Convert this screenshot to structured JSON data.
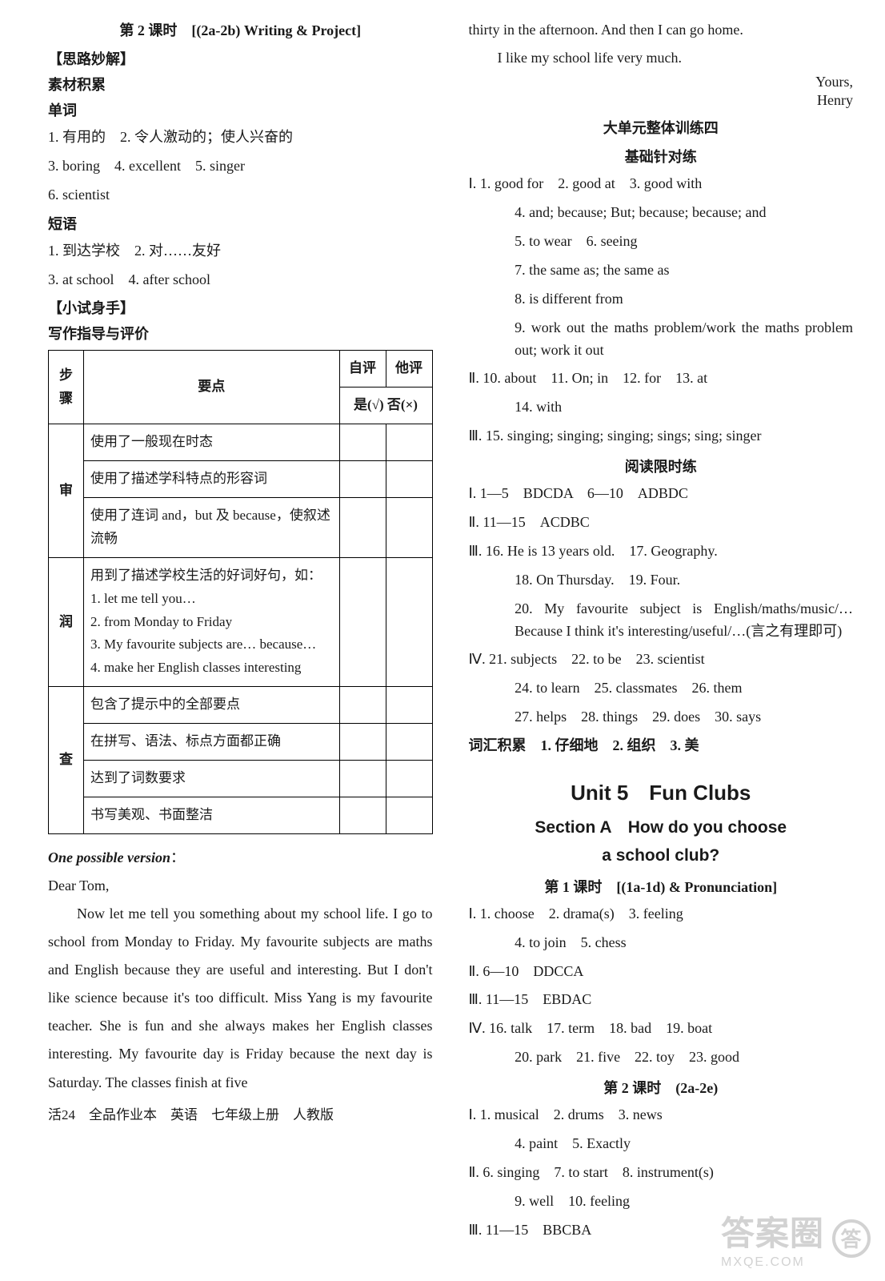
{
  "left": {
    "lesson_title_zh": "第 2 课时　[",
    "lesson_title_en": "(2a-2b) Writing & Project",
    "lesson_title_close": "]",
    "h_silu": "【思路妙解】",
    "h_sucai": "素材积累",
    "h_danci": "单词",
    "danci_l1": "1. 有用的　2. 令人激动的；使人兴奋的",
    "danci_l2": "3. boring　4. excellent　5. singer",
    "danci_l3": "6. scientist",
    "h_duanyu": "短语",
    "duanyu_l1": "1. 到达学校　2. 对……友好",
    "duanyu_l2": "3. at school　4. after school",
    "h_xiaoshi": "【小试身手】",
    "h_xiezuo": "写作指导与评价",
    "table": {
      "th_step": "步骤",
      "th_point": "要点",
      "th_self": "自评",
      "th_peer": "他评",
      "th_mark": "是(√) 否(×)",
      "r1_step": "审",
      "r1_c1": "使用了一般现在时态",
      "r1_c2": "使用了描述学科特点的形容词",
      "r1_c3": "使用了连词 and，but 及 because，使叙述流畅",
      "r2_step": "润",
      "r2_c1": "用到了描述学校生活的好词好句，如：\n1. let me tell you…\n2. from Monday to Friday\n3. My favourite subjects are… because…\n4. make her English classes interesting",
      "r3_step": "查",
      "r3_c1": "包含了提示中的全部要点",
      "r3_c2": "在拼写、语法、标点方面都正确",
      "r3_c3": "达到了词数要求",
      "r3_c4": "书写美观、书面整洁"
    },
    "opv": "One possible version",
    "dear": "Dear Tom,",
    "essay_body": "Now let me tell you something about my school life. I go to school from Monday to Friday. My favourite subjects are maths and English because they are useful and interesting. But I don't like science because it's too difficult. Miss Yang is my favourite teacher. She is fun and she always makes her English classes interesting. My favourite day is Friday because the next day is Saturday. The classes finish at five",
    "footer": "活24　全品作业本　英语　七年级上册　人教版"
  },
  "right": {
    "essay_cont": "thirty in the afternoon. And then I can go home.",
    "essay_end": "I like my school life very much.",
    "sign1": "Yours,",
    "sign2": "Henry",
    "h_dadanyuan": "大单元整体训练四",
    "h_jichu": "基础针对练",
    "i_prefix": "Ⅰ.",
    "i_1": "1. good for　2. good at　3. good with",
    "i_4": "4. and; because; But; because; because; and",
    "i_5": "5. to wear　6. seeing",
    "i_7": "7. the same as; the same as",
    "i_8": "8. is different from",
    "i_9": "9. work out the maths problem/work the maths problem out; work it out",
    "ii_prefix": "Ⅱ.",
    "ii_10": "10. about　11. On; in　12. for　13. at",
    "ii_14": "14. with",
    "iii_prefix": "Ⅲ.",
    "iii_15": "15. singing; singing; singing; sings; sing; singer",
    "h_yuedu": "阅读限时练",
    "y_i": "Ⅰ. 1—5　BDCDA　6—10　ADBDC",
    "y_ii": "Ⅱ. 11—15　ACDBC",
    "y_iii_p": "Ⅲ.",
    "y_iii_16": "16. He is 13 years old.　17. Geography.",
    "y_iii_18": "18. On Thursday.　19. Four.",
    "y_iii_20": "20. My favourite subject is English/maths/music/… Because I think it's interesting/useful/…(言之有理即可)",
    "y_iv_p": "Ⅳ.",
    "y_iv_21": "21. subjects　22. to be　23. scientist",
    "y_iv_24": "24. to learn　25. classmates　26. them",
    "y_iv_27": "27. helps　28. things　29. does　30. says",
    "cihuijilei": "词汇积累　1. 仔细地　2. 组织　3. 美",
    "unit5": "Unit 5　Fun Clubs",
    "sectionA_l1": "Section A　How do you choose",
    "sectionA_l2": "a school club?",
    "lesson1": "第 1 课时　[(1a-1d) & Pronunciation]",
    "l1_i": "Ⅰ. 1. choose　2. drama(s)　3. feeling",
    "l1_i_4": "4. to join　5. chess",
    "l1_ii": "Ⅱ. 6—10　DDCCA",
    "l1_iii": "Ⅲ. 11—15　EBDAC",
    "l1_iv_p": "Ⅳ.",
    "l1_iv_16": "16. talk　17. term　18. bad　19. boat",
    "l1_iv_20": "20. park　21. five　22. toy　23. good",
    "lesson2": "第 2 课时　(2a-2e)",
    "l2_i": "Ⅰ. 1. musical　2. drums　3. news",
    "l2_i_4": "4. paint　5. Exactly",
    "l2_ii": "Ⅱ. 6. singing　7. to start　8. instrument(s)",
    "l2_ii_9": "9. well　10. feeling",
    "l2_iii": "Ⅲ. 11—15　BBCBA"
  },
  "watermark": {
    "big": "答案圈",
    "small": "MXQE.COM",
    "icon": "答"
  }
}
